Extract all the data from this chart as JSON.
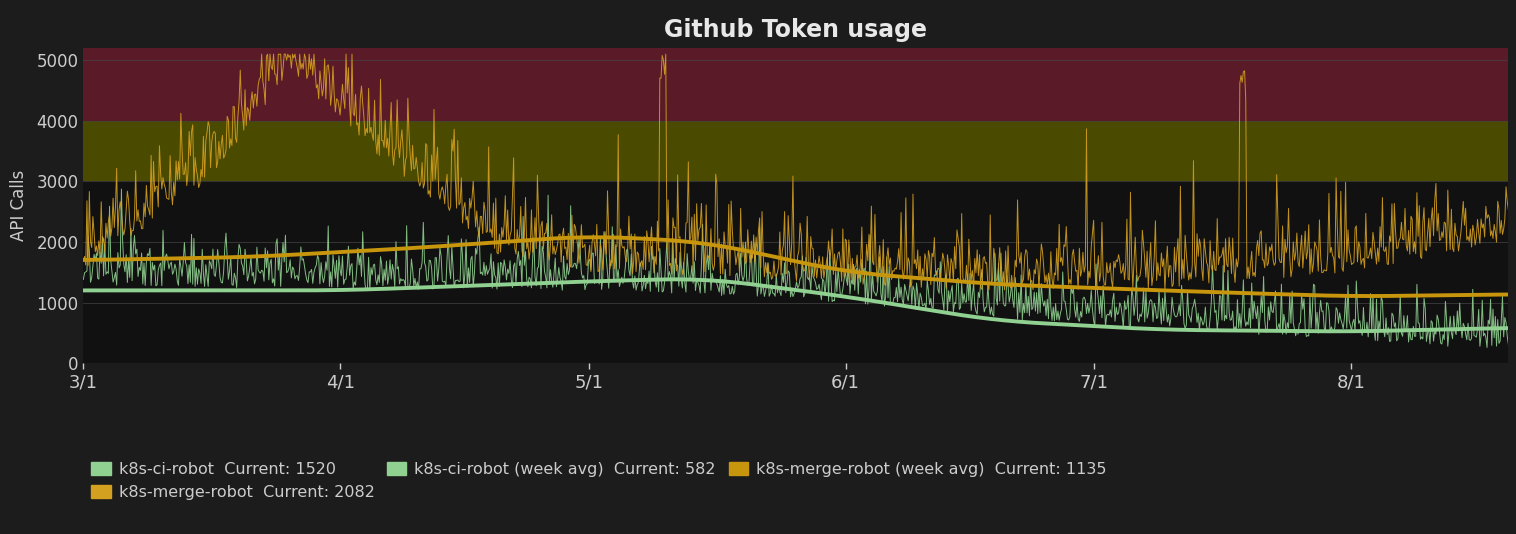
{
  "title": "Github Token usage",
  "ylabel": "API Calls",
  "bg_color": "#1c1c1c",
  "plot_bg_color": "#1c1c1c",
  "band_black_color": "#111111",
  "band_olive_color": "#4a4a00",
  "band_maroon_color": "#5a1a28",
  "ylim": [
    0,
    5200
  ],
  "yticks": [
    0,
    1000,
    2000,
    3000,
    4000,
    5000
  ],
  "xtick_labels": [
    "3/1",
    "4/1",
    "5/1",
    "6/1",
    "7/1",
    "8/1"
  ],
  "ci_robot_color": "#90d090",
  "merge_robot_color": "#d4a020",
  "ci_avg_color": "#90d090",
  "merge_avg_color": "#c8960c",
  "legend_labels": [
    "k8s-ci-robot  Current: 1520",
    "k8s-merge-robot  Current: 2082",
    "k8s-ci-robot (week avg)  Current: 582",
    "k8s-merge-robot (week avg)  Current: 1135"
  ],
  "title_color": "#e8e8e8",
  "tick_color": "#cccccc",
  "legend_bg_color": "#1c1c1c",
  "legend_text_color": "#cccccc",
  "grid_color": "#444444"
}
